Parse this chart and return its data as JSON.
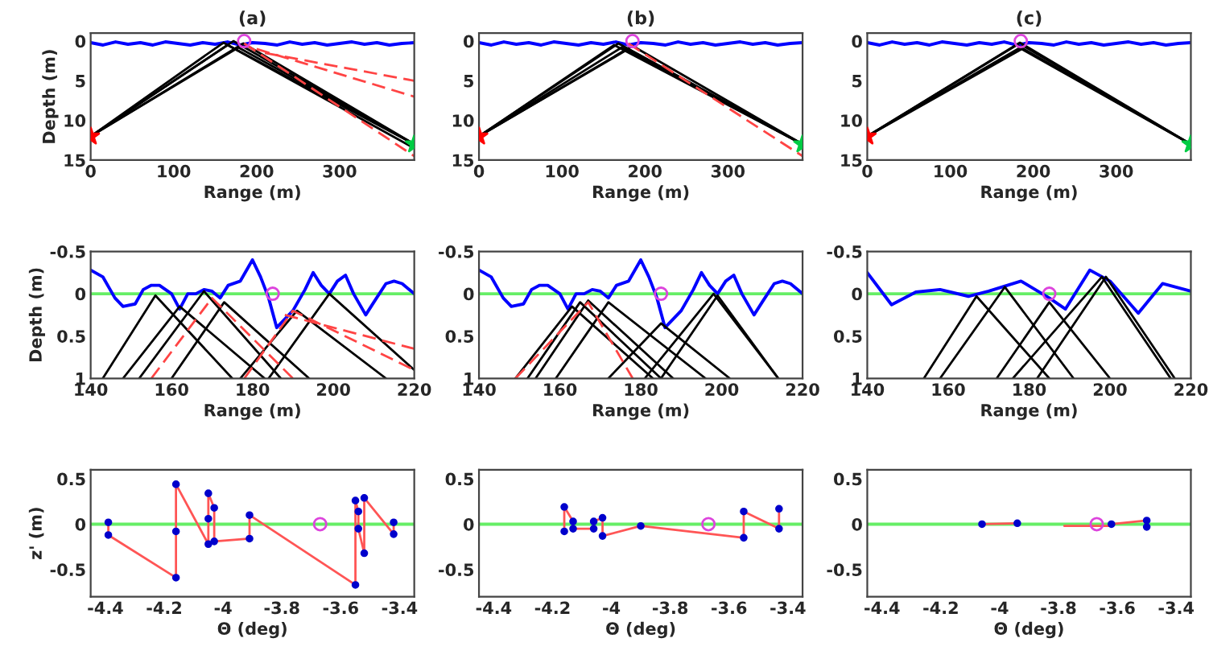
{
  "chart_data": [
    {
      "type": "line",
      "title": "(a)",
      "xlabel": "Range (m)",
      "ylabel": "Depth (m)",
      "xlim": [
        0,
        390
      ],
      "ylim": [
        15,
        -1
      ],
      "xticks": [
        0,
        100,
        200,
        300
      ],
      "yticks": [
        0,
        5,
        10,
        15
      ],
      "line_style": "solid",
      "series": [
        {
          "color": "#0000ff",
          "x": [
            0,
            15,
            30,
            45,
            60,
            75,
            90,
            105,
            120,
            135,
            150,
            165,
            180,
            195,
            210,
            225,
            240,
            255,
            270,
            285,
            300,
            315,
            330,
            345,
            360,
            375,
            390
          ],
          "values": [
            0.2,
            0.5,
            0.1,
            0.4,
            0.2,
            0.5,
            0.1,
            0.3,
            0.5,
            0.2,
            0.4,
            0.1,
            0.5,
            0.2,
            0.3,
            0.5,
            0.1,
            0.4,
            0.2,
            0.5,
            0.3,
            0.1,
            0.4,
            0.2,
            0.5,
            0.3,
            0.2
          ]
        },
        {
          "color": "#000000",
          "x": [
            0,
            165,
            390
          ],
          "values": [
            12,
            0.5,
            13
          ]
        },
        {
          "color": "#000000",
          "x": [
            0,
            172,
            390
          ],
          "values": [
            12,
            0,
            13
          ]
        },
        {
          "color": "#000000",
          "x": [
            0,
            178,
            390
          ],
          "values": [
            12,
            0.8,
            13
          ]
        },
        {
          "color": "#000000",
          "x": [
            0,
            184,
            390
          ],
          "values": [
            12,
            0.3,
            13
          ]
        },
        {
          "color": "#000000",
          "x": [
            0,
            160,
            390
          ],
          "values": [
            12,
            0.2,
            13.5
          ]
        },
        {
          "color": "#ff4444",
          "line_style": "dashed",
          "x": [
            185,
            390
          ],
          "values": [
            0.3,
            14.5
          ]
        },
        {
          "color": "#ff4444",
          "line_style": "dashed",
          "x": [
            200,
            390
          ],
          "values": [
            1,
            7
          ]
        },
        {
          "color": "#ff4444",
          "line_style": "dashed",
          "x": [
            210,
            390
          ],
          "values": [
            1.5,
            5
          ]
        },
        {
          "type": "scatter",
          "marker": "star",
          "color": "#ff0000",
          "x": [
            0
          ],
          "values": [
            12
          ]
        },
        {
          "type": "scatter",
          "marker": "star",
          "color": "#00cc44",
          "x": [
            390
          ],
          "values": [
            13
          ]
        },
        {
          "type": "scatter",
          "marker": "circle",
          "color": "#dd44dd",
          "x": [
            185
          ],
          "values": [
            0
          ]
        }
      ]
    },
    {
      "type": "line",
      "title": "(b)",
      "xlabel": "Range (m)",
      "xlim": [
        0,
        390
      ],
      "ylim": [
        15,
        -1
      ],
      "xticks": [
        0,
        100,
        200,
        300
      ],
      "yticks": [
        0,
        5,
        10,
        15
      ],
      "line_style": "solid",
      "series": [
        {
          "color": "#0000ff",
          "x": [
            0,
            15,
            30,
            45,
            60,
            75,
            90,
            105,
            120,
            135,
            150,
            165,
            180,
            195,
            210,
            225,
            240,
            255,
            270,
            285,
            300,
            315,
            330,
            345,
            360,
            375,
            390
          ],
          "values": [
            0.2,
            0.5,
            0.1,
            0.4,
            0.2,
            0.5,
            0.1,
            0.3,
            0.5,
            0.2,
            0.4,
            0.1,
            0.5,
            0.2,
            0.3,
            0.5,
            0.1,
            0.4,
            0.2,
            0.5,
            0.3,
            0.1,
            0.4,
            0.2,
            0.5,
            0.3,
            0.2
          ]
        },
        {
          "color": "#000000",
          "x": [
            0,
            163,
            390
          ],
          "values": [
            12,
            0.5,
            13
          ]
        },
        {
          "color": "#000000",
          "x": [
            0,
            168,
            390
          ],
          "values": [
            12,
            0.3,
            13
          ]
        },
        {
          "color": "#000000",
          "x": [
            0,
            172,
            390
          ],
          "values": [
            12,
            0.8,
            13
          ]
        },
        {
          "color": "#000000",
          "x": [
            0,
            180,
            390
          ],
          "values": [
            12,
            1,
            13
          ]
        },
        {
          "color": "#000000",
          "x": [
            0,
            185,
            390
          ],
          "values": [
            12,
            0.6,
            13
          ]
        },
        {
          "color": "#ff4444",
          "line_style": "dashed",
          "x": [
            180,
            390
          ],
          "values": [
            0.3,
            14.5
          ]
        },
        {
          "type": "scatter",
          "marker": "star",
          "color": "#ff0000",
          "x": [
            0
          ],
          "values": [
            12
          ]
        },
        {
          "type": "scatter",
          "marker": "star",
          "color": "#00cc44",
          "x": [
            390
          ],
          "values": [
            13
          ]
        },
        {
          "type": "scatter",
          "marker": "circle",
          "color": "#dd44dd",
          "x": [
            185
          ],
          "values": [
            0
          ]
        }
      ]
    },
    {
      "type": "line",
      "title": "(c)",
      "xlabel": "Range (m)",
      "xlim": [
        0,
        390
      ],
      "ylim": [
        15,
        -1
      ],
      "xticks": [
        0,
        100,
        200,
        300
      ],
      "yticks": [
        0,
        5,
        10,
        15
      ],
      "line_style": "solid",
      "series": [
        {
          "color": "#0000ff",
          "x": [
            0,
            15,
            30,
            45,
            60,
            75,
            90,
            105,
            120,
            135,
            150,
            165,
            180,
            195,
            210,
            225,
            240,
            255,
            270,
            285,
            300,
            315,
            330,
            345,
            360,
            375,
            390
          ],
          "values": [
            0.2,
            0.5,
            0.1,
            0.4,
            0.2,
            0.5,
            0.1,
            0.3,
            0.5,
            0.2,
            0.4,
            0.1,
            0.5,
            0.2,
            0.3,
            0.5,
            0.1,
            0.4,
            0.2,
            0.5,
            0.3,
            0.1,
            0.4,
            0.2,
            0.5,
            0.3,
            0.2
          ]
        },
        {
          "color": "#000000",
          "x": [
            0,
            180,
            390
          ],
          "values": [
            12,
            0.5,
            13
          ]
        },
        {
          "color": "#000000",
          "x": [
            0,
            184,
            390
          ],
          "values": [
            12,
            0.2,
            13
          ]
        },
        {
          "color": "#000000",
          "x": [
            0,
            186,
            390
          ],
          "values": [
            12,
            1,
            13
          ]
        },
        {
          "color": "#000000",
          "x": [
            0,
            188,
            390
          ],
          "values": [
            12,
            0.6,
            13
          ]
        },
        {
          "type": "scatter",
          "marker": "star",
          "color": "#ff0000",
          "x": [
            0
          ],
          "values": [
            12
          ]
        },
        {
          "type": "scatter",
          "marker": "star",
          "color": "#00cc44",
          "x": [
            390
          ],
          "values": [
            13
          ]
        },
        {
          "type": "scatter",
          "marker": "circle",
          "color": "#dd44dd",
          "x": [
            185
          ],
          "values": [
            0
          ]
        }
      ]
    },
    {
      "type": "line",
      "xlabel": "Range (m)",
      "ylabel": "Depth (m)",
      "xlim": [
        140,
        220
      ],
      "ylim": [
        1,
        -0.5
      ],
      "xticks": [
        140,
        160,
        180,
        200,
        220
      ],
      "yticks": [
        -0.5,
        0,
        0.5,
        1
      ],
      "line_style": "solid",
      "ref_lines": [
        {
          "axis": "y",
          "value": 0,
          "color": "#66ee66"
        }
      ],
      "series": [
        {
          "color": "#0000ff",
          "x": [
            140,
            143,
            146,
            148,
            151,
            153,
            155,
            157,
            160,
            162,
            164,
            166,
            168,
            170,
            172,
            174,
            177,
            180,
            182,
            184,
            186,
            188,
            190,
            193,
            195,
            197,
            199,
            201,
            203,
            205,
            208,
            210,
            213,
            215,
            217,
            220
          ],
          "values": [
            -0.28,
            -0.2,
            0.05,
            0.15,
            0.12,
            -0.05,
            -0.1,
            -0.1,
            0.0,
            0.18,
            0.0,
            0.0,
            -0.05,
            -0.03,
            0.05,
            -0.1,
            -0.15,
            -0.4,
            -0.2,
            0.05,
            0.4,
            0.3,
            0.2,
            -0.05,
            -0.25,
            -0.1,
            0.0,
            -0.15,
            -0.22,
            0.0,
            0.25,
            0.1,
            -0.12,
            -0.15,
            -0.12,
            0.0
          ]
        },
        {
          "color": "#000000",
          "x": [
            143,
            156,
            175
          ],
          "values": [
            1,
            0.02,
            1
          ]
        },
        {
          "color": "#000000",
          "x": [
            148,
            162,
            183
          ],
          "values": [
            1,
            0.15,
            1
          ]
        },
        {
          "color": "#000000",
          "x": [
            152,
            168,
            187
          ],
          "values": [
            1,
            -0.03,
            1
          ]
        },
        {
          "color": "#000000",
          "x": [
            160,
            173,
            194
          ],
          "values": [
            1,
            0.1,
            1
          ]
        },
        {
          "color": "#000000",
          "x": [
            177,
            191,
            213
          ],
          "values": [
            1,
            0.2,
            1
          ]
        },
        {
          "color": "#000000",
          "x": [
            184,
            199,
            220
          ],
          "values": [
            1,
            0.0,
            0.9
          ]
        },
        {
          "color": "#ff4444",
          "line_style": "dashed",
          "x": [
            155,
            170,
            190
          ],
          "values": [
            1,
            0.05,
            1
          ]
        },
        {
          "color": "#ff4444",
          "line_style": "dashed",
          "x": [
            178,
            190,
            220
          ],
          "values": [
            1,
            0.2,
            0.9
          ]
        },
        {
          "color": "#ff4444",
          "line_style": "dashed",
          "x": [
            188,
            220
          ],
          "values": [
            0.25,
            0.65
          ]
        },
        {
          "type": "scatter",
          "marker": "circle",
          "color": "#dd44dd",
          "x": [
            185
          ],
          "values": [
            0
          ]
        }
      ]
    },
    {
      "type": "line",
      "xlabel": "Range (m)",
      "xlim": [
        140,
        220
      ],
      "ylim": [
        1,
        -0.5
      ],
      "xticks": [
        140,
        160,
        180,
        200,
        220
      ],
      "yticks": [
        -0.5,
        0,
        0.5,
        1
      ],
      "line_style": "solid",
      "ref_lines": [
        {
          "axis": "y",
          "value": 0,
          "color": "#66ee66"
        }
      ],
      "series": [
        {
          "color": "#0000ff",
          "x": [
            140,
            143,
            146,
            148,
            151,
            153,
            155,
            157,
            160,
            162,
            164,
            166,
            168,
            170,
            172,
            174,
            177,
            180,
            182,
            184,
            186,
            188,
            190,
            193,
            195,
            197,
            199,
            201,
            203,
            205,
            208,
            210,
            213,
            215,
            217,
            220
          ],
          "values": [
            -0.28,
            -0.2,
            0.05,
            0.15,
            0.12,
            -0.05,
            -0.1,
            -0.1,
            0.0,
            0.18,
            0.0,
            0.0,
            -0.05,
            -0.03,
            0.05,
            -0.1,
            -0.15,
            -0.4,
            -0.2,
            0.05,
            0.4,
            0.3,
            0.2,
            -0.05,
            -0.25,
            -0.1,
            0.0,
            -0.15,
            -0.22,
            0.0,
            0.25,
            0.1,
            -0.12,
            -0.15,
            -0.12,
            0.0
          ]
        },
        {
          "color": "#000000",
          "x": [
            149,
            163,
            183
          ],
          "values": [
            1,
            0.15,
            1
          ]
        },
        {
          "color": "#000000",
          "x": [
            152,
            165,
            185
          ],
          "values": [
            1,
            0.1,
            1
          ]
        },
        {
          "color": "#000000",
          "x": [
            154,
            167,
            188
          ],
          "values": [
            1,
            0.08,
            1
          ]
        },
        {
          "color": "#000000",
          "x": [
            159,
            172,
            196
          ],
          "values": [
            1,
            0.1,
            1
          ]
        },
        {
          "color": "#000000",
          "x": [
            172,
            185,
            202
          ],
          "values": [
            1,
            0.35,
            1
          ]
        },
        {
          "color": "#000000",
          "x": [
            181,
            198,
            214
          ],
          "values": [
            1,
            0.0,
            1
          ]
        },
        {
          "color": "#000000",
          "x": [
            185,
            199,
            214
          ],
          "values": [
            1,
            0.02,
            1
          ]
        },
        {
          "color": "#ff4444",
          "line_style": "dashed",
          "x": [
            149,
            167,
            178
          ],
          "values": [
            1,
            0.1,
            1
          ]
        },
        {
          "type": "scatter",
          "marker": "circle",
          "color": "#dd44dd",
          "x": [
            185
          ],
          "values": [
            0
          ]
        }
      ]
    },
    {
      "type": "line",
      "xlabel": "Range (m)",
      "xlim": [
        140,
        220
      ],
      "ylim": [
        1,
        -0.5
      ],
      "xticks": [
        140,
        160,
        180,
        200,
        220
      ],
      "yticks": [
        -0.5,
        0,
        0.5,
        1
      ],
      "line_style": "solid",
      "ref_lines": [
        {
          "axis": "y",
          "value": 0,
          "color": "#66ee66"
        }
      ],
      "series": [
        {
          "color": "#0000ff",
          "x": [
            140,
            146,
            152,
            158,
            165,
            170,
            178,
            185,
            189,
            195,
            200,
            207,
            213,
            220
          ],
          "values": [
            -0.25,
            0.13,
            -0.02,
            -0.05,
            0.03,
            -0.03,
            -0.15,
            0.05,
            0.18,
            -0.28,
            -0.15,
            0.23,
            -0.12,
            -0.03
          ]
        },
        {
          "color": "#000000",
          "x": [
            154,
            167,
            185
          ],
          "values": [
            1,
            0.03,
            1
          ]
        },
        {
          "color": "#000000",
          "x": [
            158,
            174,
            191
          ],
          "values": [
            1,
            -0.08,
            1
          ]
        },
        {
          "color": "#000000",
          "x": [
            172,
            185,
            200
          ],
          "values": [
            1,
            0.1,
            1
          ]
        },
        {
          "color": "#000000",
          "x": [
            176,
            198,
            215
          ],
          "values": [
            1,
            -0.2,
            1
          ]
        },
        {
          "color": "#000000",
          "x": [
            182,
            199,
            216
          ],
          "values": [
            1,
            -0.2,
            1
          ]
        },
        {
          "type": "scatter",
          "marker": "circle",
          "color": "#dd44dd",
          "x": [
            185
          ],
          "values": [
            0
          ]
        }
      ]
    },
    {
      "type": "line",
      "xlabel": "Θ (deg)",
      "ylabel": "z' (m)",
      "xlim": [
        -4.45,
        -3.35
      ],
      "ylim": [
        -0.8,
        0.6
      ],
      "xticks": [
        -4.4,
        -4.2,
        -4,
        -3.8,
        -3.6,
        -3.4
      ],
      "yticks": [
        -0.5,
        0,
        0.5
      ],
      "line_style": "solid",
      "ref_lines": [
        {
          "axis": "y",
          "value": 0,
          "color": "#66ee66"
        }
      ],
      "series": [
        {
          "color": "#ff5555",
          "x": [
            -4.39,
            -4.39,
            -4.16,
            -4.16,
            -4.16,
            -4.05,
            -4.05,
            -4.05,
            -4.03,
            -4.03,
            -3.91,
            -3.91,
            -3.55,
            -3.55,
            -3.54,
            -3.54,
            -3.52,
            -3.52,
            -3.42,
            -3.42
          ],
          "values": [
            0.02,
            -0.12,
            -0.59,
            -0.08,
            0.44,
            -0.22,
            0.06,
            0.34,
            0.18,
            -0.19,
            -0.16,
            0.1,
            -0.67,
            0.26,
            0.14,
            -0.05,
            -0.32,
            0.29,
            -0.11,
            0.02
          ]
        },
        {
          "type": "scatter",
          "marker": "dot",
          "color": "#0000cc",
          "x": [
            -4.39,
            -4.39,
            -4.16,
            -4.16,
            -4.16,
            -4.05,
            -4.05,
            -4.05,
            -4.03,
            -4.03,
            -3.91,
            -3.91,
            -3.55,
            -3.55,
            -3.54,
            -3.54,
            -3.52,
            -3.52,
            -3.42,
            -3.42
          ],
          "values": [
            0.02,
            -0.12,
            -0.59,
            -0.08,
            0.44,
            -0.22,
            0.06,
            0.34,
            0.18,
            -0.19,
            -0.16,
            0.1,
            -0.67,
            0.26,
            0.14,
            -0.05,
            -0.32,
            0.29,
            -0.11,
            0.02
          ]
        },
        {
          "type": "scatter",
          "marker": "circle",
          "color": "#dd44dd",
          "x": [
            -3.67
          ],
          "values": [
            0
          ]
        }
      ]
    },
    {
      "type": "line",
      "xlabel": "Θ (deg)",
      "xlim": [
        -4.45,
        -3.35
      ],
      "ylim": [
        -0.8,
        0.6
      ],
      "xticks": [
        -4.4,
        -4.2,
        -4,
        -3.8,
        -3.6,
        -3.4
      ],
      "yticks": [
        -0.5,
        0,
        0.5
      ],
      "line_style": "solid",
      "ref_lines": [
        {
          "axis": "y",
          "value": 0,
          "color": "#66ee66"
        }
      ],
      "series": [
        {
          "color": "#ff5555",
          "x": [
            -4.16,
            -4.16,
            -4.13,
            -4.13,
            -4.06,
            -4.06,
            -4.03,
            -4.03,
            -3.9,
            -3.55,
            -3.55,
            -3.43,
            -3.43
          ],
          "values": [
            -0.08,
            0.19,
            0.03,
            -0.05,
            -0.05,
            0.03,
            0.07,
            -0.13,
            -0.02,
            -0.15,
            0.14,
            -0.05,
            0.17
          ]
        },
        {
          "type": "scatter",
          "marker": "dot",
          "color": "#0000cc",
          "x": [
            -4.16,
            -4.16,
            -4.13,
            -4.13,
            -4.06,
            -4.06,
            -4.03,
            -4.03,
            -3.9,
            -3.55,
            -3.55,
            -3.43,
            -3.43
          ],
          "values": [
            -0.08,
            0.19,
            0.03,
            -0.05,
            -0.05,
            0.03,
            0.07,
            -0.13,
            -0.02,
            -0.15,
            0.14,
            -0.05,
            0.17
          ]
        },
        {
          "type": "scatter",
          "marker": "circle",
          "color": "#dd44dd",
          "x": [
            -3.67
          ],
          "values": [
            0
          ]
        }
      ]
    },
    {
      "type": "line",
      "xlabel": "Θ (deg)",
      "xlim": [
        -4.45,
        -3.35
      ],
      "ylim": [
        -0.8,
        0.6
      ],
      "xticks": [
        -4.4,
        -4.2,
        -4,
        -3.8,
        -3.6,
        -3.4
      ],
      "yticks": [
        -0.5,
        0,
        0.5
      ],
      "line_style": "solid",
      "ref_lines": [
        {
          "axis": "y",
          "value": 0,
          "color": "#66ee66"
        }
      ],
      "series": [
        {
          "color": "#ff5555",
          "x": [
            -4.06,
            -3.94,
            -3.86,
            -3.78,
            -3.62,
            -3.62,
            -3.5,
            -3.5
          ],
          "values": [
            0,
            0.01,
            null,
            -0.02,
            -0.02,
            0,
            0.04,
            -0.03
          ]
        },
        {
          "type": "scatter",
          "marker": "dot",
          "color": "#0000cc",
          "x": [
            -4.06,
            -3.94,
            -3.62,
            -3.5,
            -3.5
          ],
          "values": [
            0,
            0.01,
            0,
            0.04,
            -0.03
          ]
        },
        {
          "type": "scatter",
          "marker": "circle",
          "color": "#dd44dd",
          "x": [
            -3.67
          ],
          "values": [
            0
          ]
        }
      ]
    }
  ]
}
